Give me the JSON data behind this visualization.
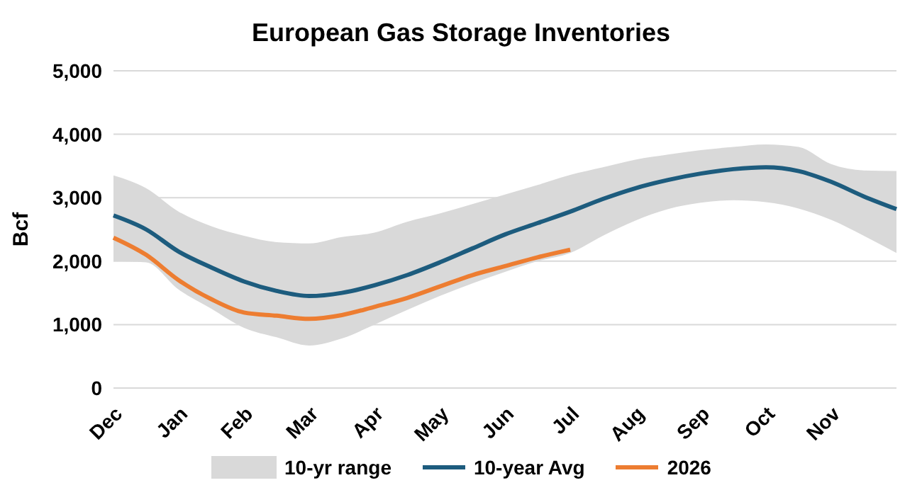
{
  "chart_data": {
    "type": "line",
    "title": "European Gas Storage Inventories",
    "ylabel": "Bcf",
    "categories": [
      "Dec",
      null,
      "Jan",
      null,
      "Feb",
      null,
      "Mar",
      null,
      "Apr",
      null,
      "May",
      null,
      "Jun",
      null,
      "Jul",
      null,
      "Aug",
      null,
      "Sep",
      null,
      "Oct",
      null,
      "Nov",
      null,
      null
    ],
    "ylim": [
      0,
      5000
    ],
    "yticks": [
      {
        "value": 0,
        "label": "0"
      },
      {
        "value": 1000,
        "label": "1,000"
      },
      {
        "value": 2000,
        "label": "2,000"
      },
      {
        "value": 3000,
        "label": "3,000"
      },
      {
        "value": 4000,
        "label": "4,000"
      },
      {
        "value": 5000,
        "label": "5,000"
      }
    ],
    "grid": "y",
    "legend": "bottom",
    "marker": "none",
    "line_style": "solid",
    "series": [
      {
        "name": "10-yr range",
        "type": "area",
        "color": "#d9d9d9",
        "values": [
          null,
          null,
          null,
          null,
          null,
          null,
          null,
          null,
          null,
          null,
          null,
          null,
          null,
          null,
          null,
          null,
          null,
          null,
          null,
          null,
          null,
          null,
          null,
          null,
          null
        ],
        "lower": [
          2000,
          1980,
          1550,
          1250,
          950,
          800,
          670,
          780,
          1000,
          1230,
          1450,
          1650,
          1830,
          2000,
          2130,
          2400,
          2640,
          2820,
          2920,
          2960,
          2930,
          2830,
          2650,
          2400,
          2130
        ],
        "upper": [
          3350,
          3150,
          2780,
          2550,
          2400,
          2300,
          2280,
          2380,
          2450,
          2620,
          2750,
          2900,
          3050,
          3200,
          3360,
          3480,
          3600,
          3680,
          3750,
          3800,
          3840,
          3800,
          3530,
          3430,
          3420
        ]
      },
      {
        "name": "10-year Avg",
        "color": "#1d5c7e",
        "values": [
          2720,
          2500,
          2150,
          1900,
          1680,
          1530,
          1450,
          1500,
          1620,
          1780,
          1980,
          2200,
          2420,
          2600,
          2780,
          2980,
          3150,
          3280,
          3380,
          3450,
          3480,
          3420,
          3250,
          3020,
          2820
        ]
      },
      {
        "name": "2026",
        "color": "#ed7d31",
        "values": [
          2370,
          2100,
          1700,
          1400,
          1190,
          1140,
          1090,
          1150,
          1280,
          1420,
          1600,
          1780,
          1920,
          2060,
          2180,
          null,
          null,
          null,
          null,
          null,
          null,
          null,
          null,
          null,
          null
        ]
      }
    ]
  }
}
